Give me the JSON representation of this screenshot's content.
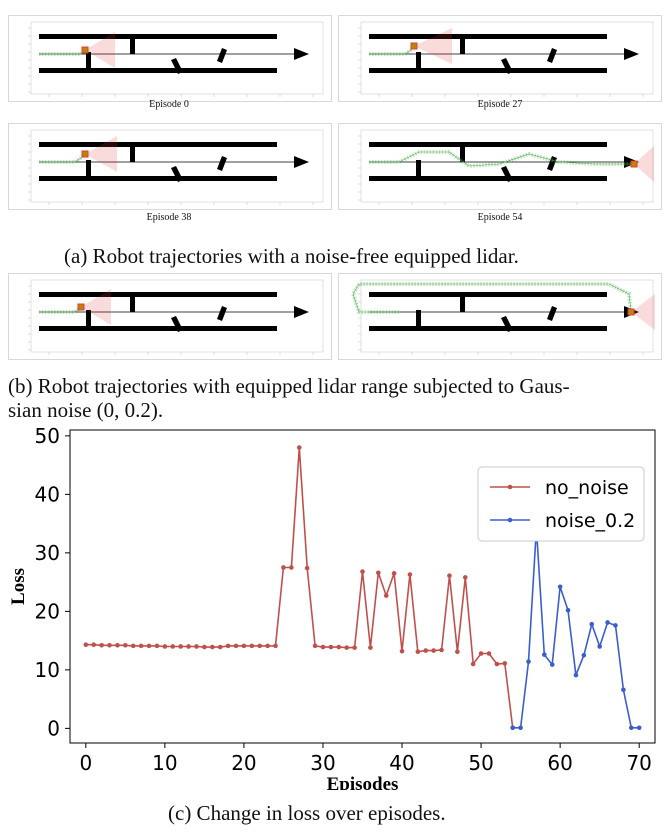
{
  "panels_a": {
    "ep0": "Episode 0",
    "ep27": "Episode 27",
    "ep38": "Episode 38",
    "ep54": "Episode 54"
  },
  "captions": {
    "a": "(a) Robot trajectories with a noise-free equipped lidar.",
    "b_line1": "(b) Robot trajectories with equipped lidar range subjected to Gaus-",
    "b_line2": "sian noise (0, 0.2).",
    "c": "(c) Change in loss over episodes."
  },
  "colors": {
    "no_noise": "#c0504d",
    "noise_0.2": "#3a5fcd",
    "trajectory": "#4caf50",
    "lidar": "#e53935"
  },
  "chart_data": {
    "type": "line",
    "xlabel": "Episodes",
    "ylabel": "Loss",
    "xlim": [
      -2,
      72
    ],
    "ylim": [
      -2.5,
      51
    ],
    "xticks": [
      0,
      10,
      20,
      30,
      40,
      50,
      60,
      70
    ],
    "yticks": [
      0,
      10,
      20,
      30,
      40,
      50
    ],
    "legend": "top-right",
    "grid": false,
    "series": [
      {
        "name": "no_noise",
        "x": [
          0,
          1,
          2,
          3,
          4,
          5,
          6,
          7,
          8,
          9,
          10,
          11,
          12,
          13,
          14,
          15,
          16,
          17,
          18,
          19,
          20,
          21,
          22,
          23,
          24,
          25,
          26,
          27,
          28,
          29,
          30,
          31,
          32,
          33,
          34,
          35,
          36,
          37,
          38,
          39,
          40,
          41,
          42,
          43,
          44,
          45,
          46,
          47,
          48,
          49,
          50,
          51,
          52,
          53,
          54
        ],
        "values": [
          14.3,
          14.3,
          14.2,
          14.2,
          14.2,
          14.2,
          14.1,
          14.1,
          14.1,
          14.1,
          14.0,
          14.0,
          14.0,
          14.0,
          14.0,
          13.9,
          13.9,
          13.9,
          14.1,
          14.1,
          14.1,
          14.1,
          14.1,
          14.1,
          14.1,
          27.5,
          27.5,
          48.0,
          27.4,
          14.1,
          13.9,
          13.9,
          13.9,
          13.8,
          13.8,
          26.8,
          13.8,
          26.6,
          22.7,
          26.5,
          13.2,
          26.3,
          13.1,
          13.3,
          13.3,
          13.4,
          26.1,
          13.1,
          25.8,
          11.0,
          12.8,
          12.8,
          11.0,
          11.1,
          0.1
        ],
        "color": "#c0504d"
      },
      {
        "name": "noise_0.2",
        "x": [
          54,
          55,
          56,
          57,
          58,
          59,
          60,
          61,
          62,
          63,
          64,
          65,
          66,
          67,
          68,
          69,
          70
        ],
        "values": [
          0.1,
          0.1,
          11.4,
          34.2,
          12.6,
          10.9,
          24.2,
          20.2,
          9.1,
          12.5,
          17.8,
          14.0,
          18.1,
          17.6,
          6.6,
          0.1,
          0.1
        ],
        "color": "#3a5fcd"
      }
    ]
  }
}
